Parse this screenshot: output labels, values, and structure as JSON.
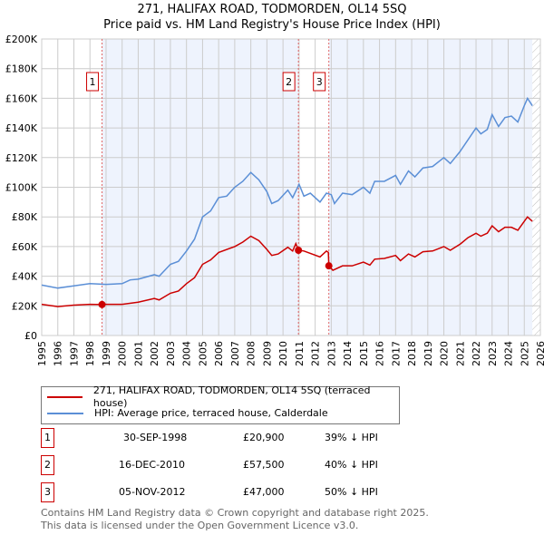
{
  "chart_data": {
    "type": "line",
    "title": "271, HALIFAX ROAD, TODMORDEN, OL14 5SQ",
    "subtitle": "Price paid vs. HM Land Registry's House Price Index (HPI)",
    "xlim": [
      1995,
      2026
    ],
    "ylim": [
      0,
      200000
    ],
    "x_ticks": [
      "1995",
      "1996",
      "1997",
      "1998",
      "1999",
      "2000",
      "2001",
      "2002",
      "2003",
      "2004",
      "2005",
      "2006",
      "2007",
      "2008",
      "2009",
      "2010",
      "2011",
      "2012",
      "2013",
      "2014",
      "2015",
      "2016",
      "2017",
      "2018",
      "2019",
      "2020",
      "2021",
      "2022",
      "2023",
      "2024",
      "2025",
      "2026"
    ],
    "y_ticks": [
      {
        "v": 0,
        "label": "£0"
      },
      {
        "v": 20000,
        "label": "£20K"
      },
      {
        "v": 40000,
        "label": "£40K"
      },
      {
        "v": 60000,
        "label": "£60K"
      },
      {
        "v": 80000,
        "label": "£80K"
      },
      {
        "v": 100000,
        "label": "£100K"
      },
      {
        "v": 120000,
        "label": "£120K"
      },
      {
        "v": 140000,
        "label": "£140K"
      },
      {
        "v": 160000,
        "label": "£160K"
      },
      {
        "v": 180000,
        "label": "£180K"
      },
      {
        "v": 200000,
        "label": "£200K"
      }
    ],
    "grid": true,
    "legend_position": "below",
    "series": [
      {
        "name": "271, HALIFAX ROAD, TODMORDEN, OL14 5SQ (terraced house)",
        "color": "#cc0000",
        "x": [
          1995,
          1996,
          1997,
          1998,
          1998.75,
          1999,
          2000,
          2001,
          2002,
          2002.3,
          2003,
          2003.5,
          2004,
          2004.5,
          2005,
          2005.5,
          2006,
          2007,
          2007.5,
          2008,
          2008.5,
          2009,
          2009.3,
          2009.7,
          2010.3,
          2010.6,
          2010.8,
          2010.96,
          2011.3,
          2012.3,
          2012.7,
          2012.82,
          2012.85,
          2013.1,
          2013.7,
          2014.3,
          2015,
          2015.4,
          2015.7,
          2016.3,
          2017,
          2017.3,
          2017.8,
          2018.2,
          2018.7,
          2019.3,
          2020,
          2020.4,
          2021,
          2021.5,
          2022,
          2022.3,
          2022.7,
          2023,
          2023.4,
          2023.8,
          2024.2,
          2024.6,
          2025,
          2025.2,
          2025.5
        ],
        "y": [
          21000,
          19500,
          20500,
          21000,
          20900,
          21000,
          21000,
          22500,
          25000,
          24000,
          28500,
          30000,
          35000,
          39000,
          48000,
          51000,
          56000,
          60000,
          63000,
          67000,
          64000,
          58000,
          54000,
          55000,
          59500,
          57000,
          62000,
          57500,
          57000,
          53000,
          57000,
          56000,
          47000,
          44000,
          47000,
          47000,
          49500,
          47500,
          51500,
          52000,
          54000,
          50500,
          55000,
          53000,
          56500,
          57000,
          60000,
          57500,
          61500,
          66000,
          69000,
          67000,
          69000,
          74000,
          70000,
          73000,
          73000,
          71000,
          77000,
          80000,
          77000
        ]
      },
      {
        "name": "HPI: Average price, terraced house, Calderdale",
        "color": "#5b8fd6",
        "x": [
          1995,
          1996,
          1997,
          1998,
          1999,
          2000,
          2000.5,
          2001,
          2002,
          2002.3,
          2003,
          2003.5,
          2004,
          2004.5,
          2005,
          2005.5,
          2006,
          2006.5,
          2007,
          2007.5,
          2008,
          2008.5,
          2009,
          2009.3,
          2009.7,
          2010.3,
          2010.6,
          2011,
          2011.3,
          2011.7,
          2012.3,
          2012.7,
          2013,
          2013.2,
          2013.7,
          2014.3,
          2015,
          2015.4,
          2015.7,
          2016.3,
          2017,
          2017.3,
          2017.8,
          2018.2,
          2018.7,
          2019.3,
          2020,
          2020.4,
          2021,
          2021.5,
          2022,
          2022.3,
          2022.7,
          2023,
          2023.4,
          2023.8,
          2024.2,
          2024.6,
          2025,
          2025.2,
          2025.5
        ],
        "y": [
          34000,
          32000,
          33500,
          35000,
          34500,
          35000,
          37500,
          38000,
          41000,
          40000,
          48000,
          50000,
          57000,
          65000,
          80000,
          84000,
          93000,
          94000,
          100000,
          104000,
          110000,
          105000,
          97000,
          89000,
          91000,
          98000,
          93000,
          102000,
          94000,
          96000,
          90000,
          96000,
          95000,
          89000,
          96000,
          95000,
          100000,
          96000,
          104000,
          104000,
          108000,
          102000,
          111000,
          107000,
          113000,
          114000,
          120000,
          116000,
          124000,
          132000,
          140000,
          136000,
          139000,
          149000,
          141000,
          147000,
          148000,
          144000,
          155000,
          160000,
          155000
        ]
      }
    ],
    "sales": [
      {
        "num": "1",
        "x": 1998.75,
        "price": 20900,
        "date": "30-SEP-1998",
        "price_label": "£20,900",
        "hpi": "39% ↓ HPI"
      },
      {
        "num": "2",
        "x": 2010.96,
        "price": 57500,
        "date": "16-DEC-2010",
        "price_label": "£57,500",
        "hpi": "40% ↓ HPI"
      },
      {
        "num": "3",
        "x": 2012.85,
        "price": 47000,
        "date": "05-NOV-2012",
        "price_label": "£47,000",
        "hpi": "50% ↓ HPI"
      }
    ],
    "hatch_from": 2025.5
  },
  "footer": {
    "line1": "Contains HM Land Registry data © Crown copyright and database right 2025.",
    "line2": "This data is licensed under the Open Government Licence v3.0."
  }
}
